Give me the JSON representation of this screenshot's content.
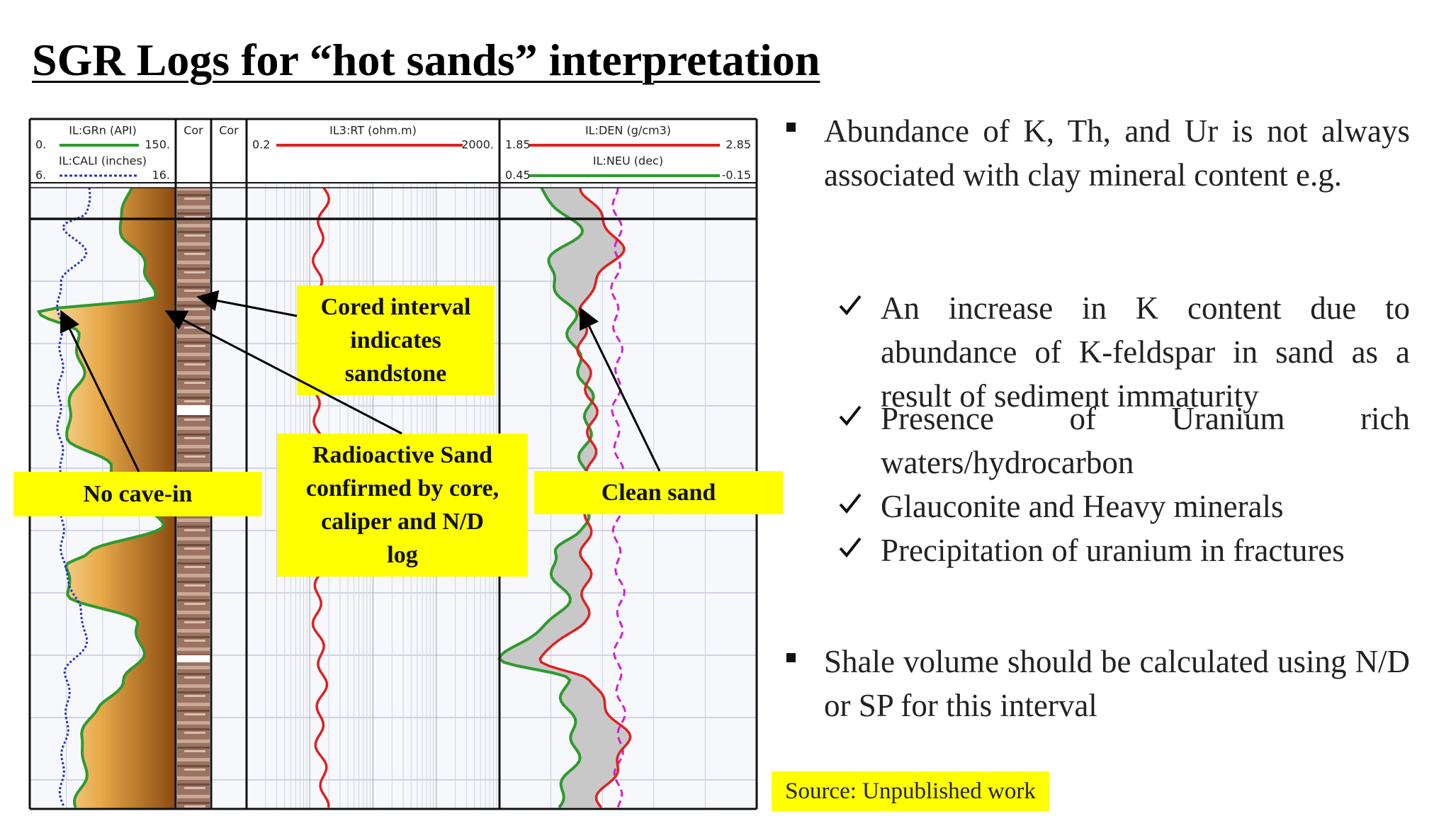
{
  "title": "SGR Logs for “hot sands” interpretation",
  "log": {
    "tracks": [
      {
        "curves": [
          {
            "name": "IL:GRn (API)",
            "left": "0.",
            "right": "150."
          },
          {
            "name": "IL:CALI (inches)",
            "left": "6.",
            "right": "16."
          }
        ]
      },
      {
        "curves": [
          {
            "name": "Cor"
          }
        ]
      },
      {
        "curves": [
          {
            "name": "Cor"
          }
        ]
      },
      {
        "curves": [
          {
            "name": "IL3:RT (ohm.m)",
            "left": "0.2",
            "right": "2000."
          }
        ]
      },
      {
        "curves": [
          {
            "name": "IL:DEN (g/cm3)",
            "left": "1.85",
            "right": "2.85"
          },
          {
            "name": "IL:NEU (dec)",
            "left": "0.45",
            "right": "-0.15"
          }
        ]
      }
    ]
  },
  "callouts": [
    {
      "lines": [
        "Cored interval",
        "indicates",
        "sandstone"
      ]
    },
    {
      "lines": [
        "Radioactive Sand",
        "confirmed by core,",
        "caliper and N/D",
        "log"
      ]
    },
    {
      "lines": [
        "No cave-in"
      ]
    },
    {
      "lines": [
        "Clean sand"
      ]
    }
  ],
  "bullets": [
    {
      "text": "Abundance of K, Th, and Ur is not always associated with clay mineral content e.g.",
      "subitems": [
        "An increase in K content due to abundance of K-feldspar in sand as a result of sediment immaturity",
        "Presence of Uranium rich waters/hydrocarbon",
        "Glauconite and Heavy minerals",
        "Precipitation of uranium in fractures"
      ]
    },
    {
      "text": "Shale volume should be calculated using N/D or SP for this interval",
      "subitems": []
    }
  ],
  "source": "Source: Unpublished work"
}
